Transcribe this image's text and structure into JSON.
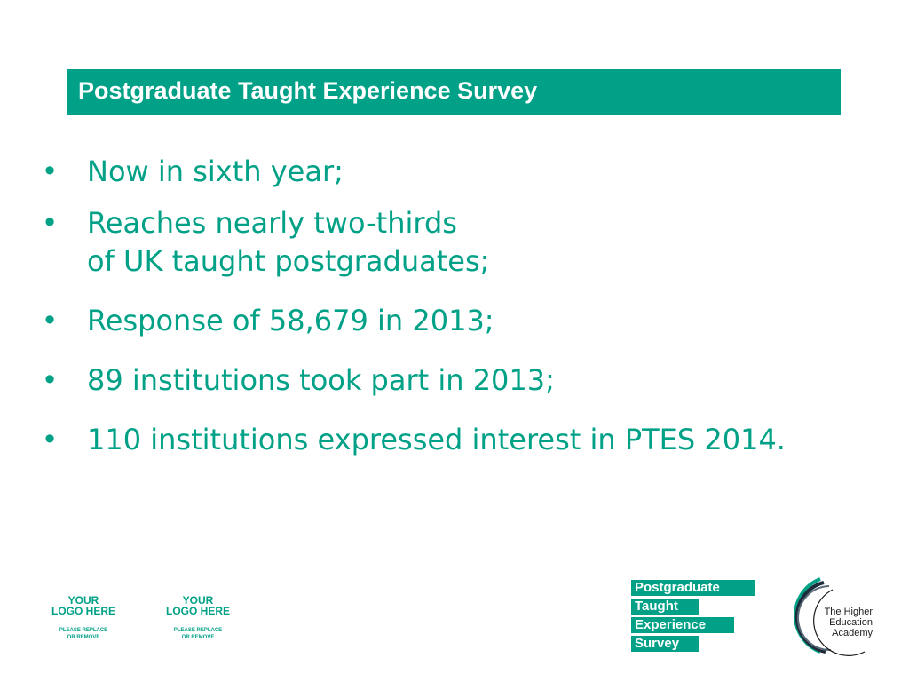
{
  "slide": {
    "title": "Postgraduate Taught Experience Survey",
    "bullet_marker": "•",
    "bullets": [
      "Now in sixth year;",
      "Reaches nearly two-thirds\nof UK taught postgraduates;",
      "Response of 58,679 in 2013;",
      "89 institutions took part in 2013;",
      "110 institutions expressed interest in PTES 2014."
    ]
  },
  "footer": {
    "placeholders": [
      {
        "line1": "YOUR",
        "line2": "LOGO HERE",
        "sub1": "PLEASE REPLACE",
        "sub2": "OR REMOVE"
      },
      {
        "line1": "YOUR",
        "line2": "LOGO HERE",
        "sub1": "PLEASE REPLACE",
        "sub2": "OR REMOVE"
      }
    ],
    "ptes_logo": [
      "Postgraduate",
      "Taught",
      "Experience",
      "Survey"
    ],
    "hea_logo": [
      "The Higher",
      "Education",
      "Academy"
    ]
  },
  "colors": {
    "accent": "#00A187",
    "background": "#ffffff",
    "title_text": "#ffffff"
  }
}
